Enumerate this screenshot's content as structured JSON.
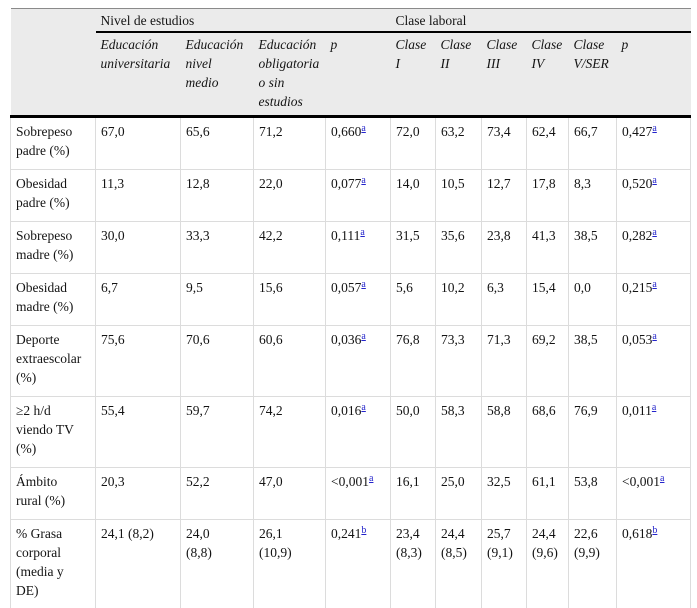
{
  "colors": {
    "header_bg": "#ebebeb",
    "header_rule": "#000000",
    "top_rule": "#8a8a8a",
    "grid_line": "#dcdcdc",
    "footnote_link": "#2323cb"
  },
  "table": {
    "group_headers": {
      "nivel": "Nivel de estudios",
      "clase": "Clase laboral"
    },
    "column_headers": {
      "nivel": [
        "Educación\nuniversitaria",
        "Educación\nnivel\nmedio",
        "Educación\nobligatoria\no sin\nestudios",
        "p"
      ],
      "clase": [
        "Clase\nI",
        "Clase\nII",
        "Clase\nIII",
        "Clase\nIV",
        "Clase\nV/SER",
        "p"
      ]
    },
    "rows": [
      {
        "label": "Sobrepeso\npadre (%)",
        "nivel": [
          "67,0",
          "65,6",
          "71,2"
        ],
        "p_nivel": {
          "value": "0,660",
          "marker": "a"
        },
        "clase": [
          "72,0",
          "63,2",
          "73,4",
          "62,4",
          "66,7"
        ],
        "p_clase": {
          "value": "0,427",
          "marker": "a"
        }
      },
      {
        "label": "Obesidad\npadre (%)",
        "nivel": [
          "11,3",
          "12,8",
          "22,0"
        ],
        "p_nivel": {
          "value": "0,077",
          "marker": "a"
        },
        "clase": [
          "14,0",
          "10,5",
          "12,7",
          "17,8",
          "8,3"
        ],
        "p_clase": {
          "value": "0,520",
          "marker": "a"
        }
      },
      {
        "label": "Sobrepeso\nmadre (%)",
        "nivel": [
          "30,0",
          "33,3",
          "42,2"
        ],
        "p_nivel": {
          "value": "0,111",
          "marker": "a"
        },
        "clase": [
          "31,5",
          "35,6",
          "23,8",
          "41,3",
          "38,5"
        ],
        "p_clase": {
          "value": "0,282",
          "marker": "a"
        }
      },
      {
        "label": "Obesidad\nmadre (%)",
        "nivel": [
          "6,7",
          "9,5",
          "15,6"
        ],
        "p_nivel": {
          "value": "0,057",
          "marker": "a"
        },
        "clase": [
          "5,6",
          "10,2",
          "6,3",
          "15,4",
          "0,0"
        ],
        "p_clase": {
          "value": "0,215",
          "marker": "a"
        }
      },
      {
        "label": "Deporte\nextraescolar\n(%)",
        "nivel": [
          "75,6",
          "70,6",
          "60,6"
        ],
        "p_nivel": {
          "value": "0,036",
          "marker": "a"
        },
        "clase": [
          "76,8",
          "73,3",
          "71,3",
          "69,2",
          "38,5"
        ],
        "p_clase": {
          "value": "0,053",
          "marker": "a"
        }
      },
      {
        "label": "≥2 h/d\nviendo TV\n(%)",
        "nivel": [
          "55,4",
          "59,7",
          "74,2"
        ],
        "p_nivel": {
          "value": "0,016",
          "marker": "a"
        },
        "clase": [
          "50,0",
          "58,3",
          "58,8",
          "68,6",
          "76,9"
        ],
        "p_clase": {
          "value": "0,011",
          "marker": "a"
        }
      },
      {
        "label": "Ámbito\nrural (%)",
        "nivel": [
          "20,3",
          "52,2",
          "47,0"
        ],
        "p_nivel": {
          "value": "<0,001",
          "marker": "a"
        },
        "clase": [
          "16,1",
          "25,0",
          "32,5",
          "61,1",
          "53,8"
        ],
        "p_clase": {
          "value": "<0,001",
          "marker": "a"
        }
      },
      {
        "label": "% Grasa\ncorporal\n(media y\nDE)",
        "nivel": [
          "24,1 (8,2)",
          "24,0\n(8,8)",
          "26,1\n(10,9)"
        ],
        "p_nivel": {
          "value": "0,241",
          "marker": "b"
        },
        "clase": [
          "23,4\n(8,3)",
          "24,4\n(8,5)",
          "25,7\n(9,1)",
          "24,4\n(9,6)",
          "22,6\n(9,9)"
        ],
        "p_clase": {
          "value": "0,618",
          "marker": "b"
        }
      }
    ]
  }
}
